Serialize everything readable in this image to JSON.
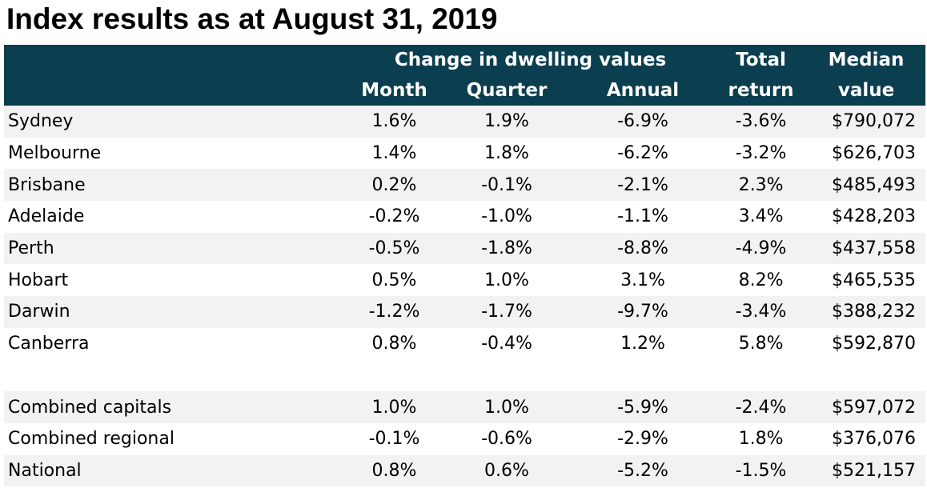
{
  "title": "Index results as at August 31, 2019",
  "header": {
    "group_label": "Change in dwelling values",
    "month": "Month",
    "quarter": "Quarter",
    "annual": "Annual",
    "total_line1": "Total",
    "total_line2": "return",
    "median_line1": "Median",
    "median_line2": "value"
  },
  "rows": [
    {
      "name": "Sydney",
      "month": "1.6%",
      "quarter": "1.9%",
      "annual": "-6.9%",
      "total": "-3.6%",
      "median": "$790,072"
    },
    {
      "name": "Melbourne",
      "month": "1.4%",
      "quarter": "1.8%",
      "annual": "-6.2%",
      "total": "-3.2%",
      "median": "$626,703"
    },
    {
      "name": "Brisbane",
      "month": "0.2%",
      "quarter": "-0.1%",
      "annual": "-2.1%",
      "total": "2.3%",
      "median": "$485,493"
    },
    {
      "name": "Adelaide",
      "month": "-0.2%",
      "quarter": "-1.0%",
      "annual": "-1.1%",
      "total": "3.4%",
      "median": "$428,203"
    },
    {
      "name": "Perth",
      "month": "-0.5%",
      "quarter": "-1.8%",
      "annual": "-8.8%",
      "total": "-4.9%",
      "median": "$437,558"
    },
    {
      "name": "Hobart",
      "month": "0.5%",
      "quarter": "1.0%",
      "annual": "3.1%",
      "total": "8.2%",
      "median": "$465,535"
    },
    {
      "name": "Darwin",
      "month": "-1.2%",
      "quarter": "-1.7%",
      "annual": "-9.7%",
      "total": "-3.4%",
      "median": "$388,232"
    },
    {
      "name": "Canberra",
      "month": "0.8%",
      "quarter": "-0.4%",
      "annual": "1.2%",
      "total": "5.8%",
      "median": "$592,870"
    }
  ],
  "summary_rows": [
    {
      "name": "Combined capitals",
      "month": "1.0%",
      "quarter": "1.0%",
      "annual": "-5.9%",
      "total": "-2.4%",
      "median": "$597,072"
    },
    {
      "name": "Combined regional",
      "month": "-0.1%",
      "quarter": "-0.6%",
      "annual": "-2.9%",
      "total": "1.8%",
      "median": "$376,076"
    },
    {
      "name": "National",
      "month": "0.8%",
      "quarter": "0.6%",
      "annual": "-5.2%",
      "total": "-1.5%",
      "median": "$521,157"
    }
  ],
  "colors": {
    "header_bg": "#0b3e4f",
    "header_text": "#ffffff",
    "stripe": "#f2f2f2"
  }
}
